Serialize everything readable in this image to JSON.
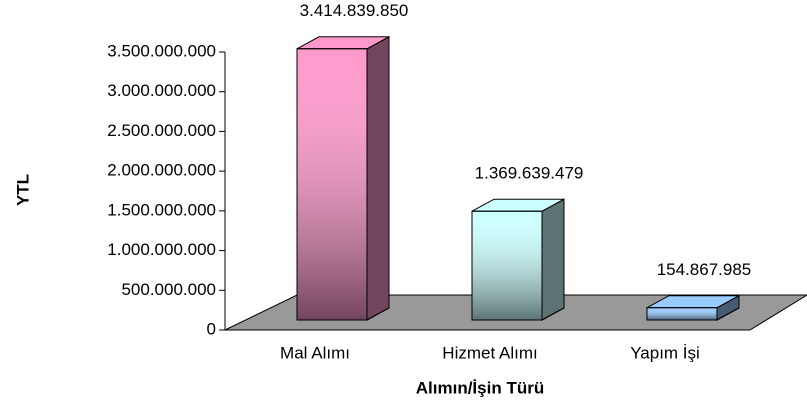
{
  "chart_data": {
    "type": "bar3d",
    "categories": [
      "Mal Alımı",
      "Hizmet Alımı",
      "Yapım İşi"
    ],
    "values": [
      3414839850,
      1369639479,
      154867985
    ],
    "value_labels": [
      "3.414.839.850",
      "1.369.639.479",
      "154.867.985"
    ],
    "colors": [
      "#ff99cc",
      "#ccffff",
      "#99ccff"
    ],
    "ylim": [
      0,
      3500000000
    ],
    "yticks": [
      {
        "value": 0,
        "label": "0"
      },
      {
        "value": 500000000,
        "label": "500.000.000"
      },
      {
        "value": 1000000000,
        "label": "1.000.000.000"
      },
      {
        "value": 1500000000,
        "label": "1.500.000.000"
      },
      {
        "value": 2000000000,
        "label": "2.000.000.000"
      },
      {
        "value": 2500000000,
        "label": "2.500.000.000"
      },
      {
        "value": 3000000000,
        "label": "3.000.000.000"
      },
      {
        "value": 3500000000,
        "label": "3.500.000.000"
      }
    ],
    "y_label": "YTL",
    "x_label": "Alımın/İşin Türü"
  }
}
